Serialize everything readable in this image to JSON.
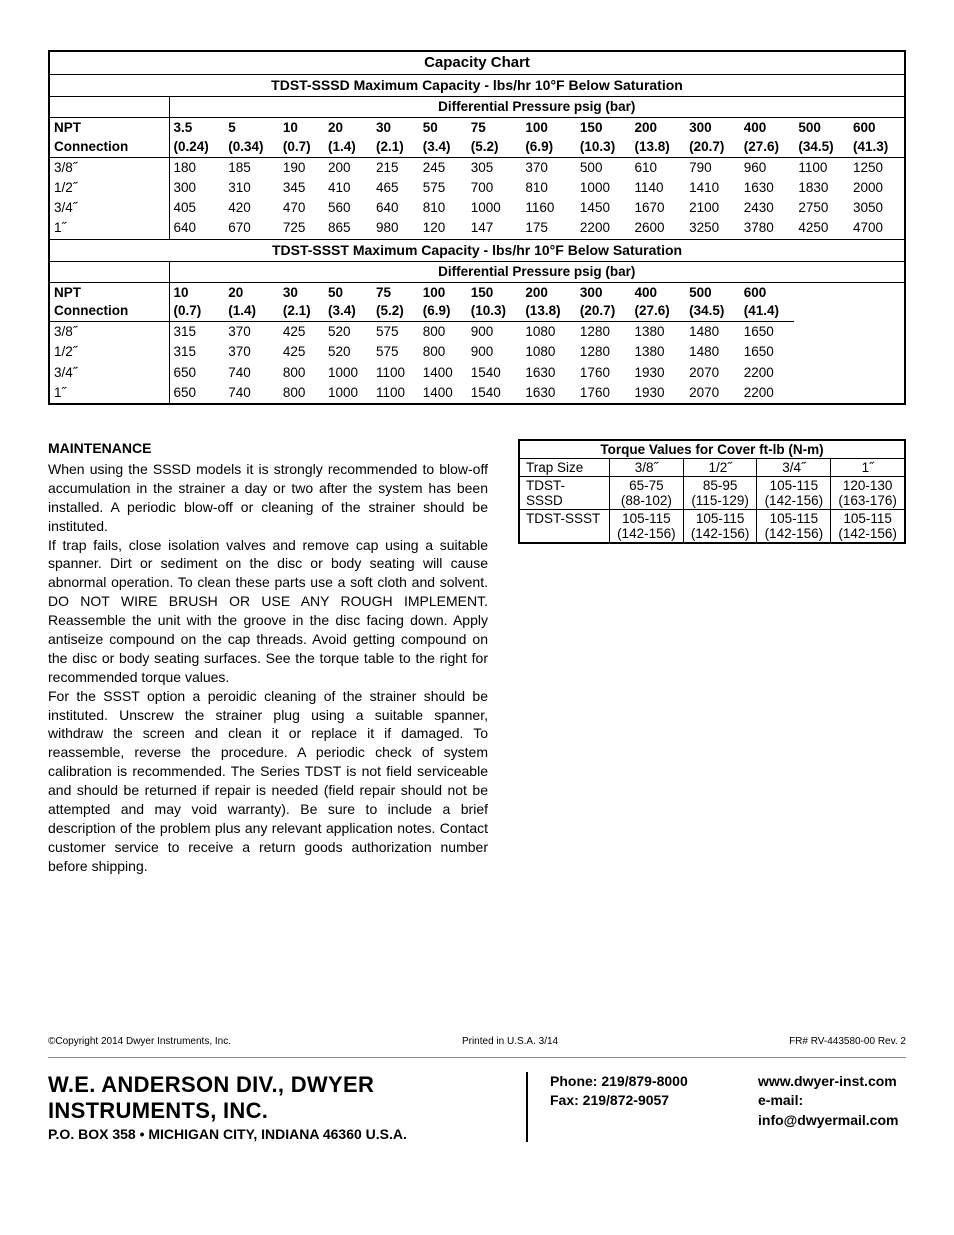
{
  "capacity": {
    "title": "Capacity Chart",
    "sssd": {
      "subtitle": "TDST-SSSD Maximum Capacity - lbs/hr 10°F Below Saturation",
      "diff_label": "Differential Pressure psig (bar)",
      "left_header_top": "NPT",
      "left_header_bot": "Connection",
      "headers_top": [
        "3.5",
        "5",
        "10",
        "20",
        "30",
        "50",
        "75",
        "100",
        "150",
        "200",
        "300",
        "400",
        "500",
        "600"
      ],
      "headers_bot": [
        "(0.24)",
        "(0.34)",
        "(0.7)",
        "(1.4)",
        "(2.1)",
        "(3.4)",
        "(5.2)",
        "(6.9)",
        "(10.3)",
        "(13.8)",
        "(20.7)",
        "(27.6)",
        "(34.5)",
        "(41.3)"
      ],
      "rows": [
        {
          "label": "3/8˝",
          "vals": [
            "180",
            "185",
            "190",
            "200",
            "215",
            "245",
            "305",
            "370",
            "500",
            "610",
            "790",
            "960",
            "1100",
            "1250"
          ]
        },
        {
          "label": "1/2˝",
          "vals": [
            "300",
            "310",
            "345",
            "410",
            "465",
            "575",
            "700",
            "810",
            "1000",
            "1140",
            "1410",
            "1630",
            "1830",
            "2000"
          ]
        },
        {
          "label": "3/4˝",
          "vals": [
            "405",
            "420",
            "470",
            "560",
            "640",
            "810",
            "1000",
            "1160",
            "1450",
            "1670",
            "2100",
            "2430",
            "2750",
            "3050"
          ]
        },
        {
          "label": "1˝",
          "vals": [
            "640",
            "670",
            "725",
            "865",
            "980",
            "120",
            "147",
            "175",
            "2200",
            "2600",
            "3250",
            "3780",
            "4250",
            "4700"
          ]
        }
      ]
    },
    "ssst": {
      "subtitle": "TDST-SSST Maximum Capacity - lbs/hr 10°F Below Saturation",
      "diff_label": "Differential Pressure psig (bar)",
      "left_header_top": "NPT",
      "left_header_bot": "Connection",
      "headers_top": [
        "10",
        "20",
        "30",
        "50",
        "75",
        "100",
        "150",
        "200",
        "300",
        "400",
        "500",
        "600"
      ],
      "headers_bot": [
        "(0.7)",
        "(1.4)",
        "(2.1)",
        "(3.4)",
        "(5.2)",
        "(6.9)",
        "(10.3)",
        "(13.8)",
        "(20.7)",
        "(27.6)",
        "(34.5)",
        "(41.4)"
      ],
      "rows": [
        {
          "label": "3/8˝",
          "vals": [
            "315",
            "370",
            "425",
            "520",
            "575",
            "800",
            "900",
            "1080",
            "1280",
            "1380",
            "1480",
            "1650"
          ]
        },
        {
          "label": "1/2˝",
          "vals": [
            "315",
            "370",
            "425",
            "520",
            "575",
            "800",
            "900",
            "1080",
            "1280",
            "1380",
            "1480",
            "1650"
          ]
        },
        {
          "label": "3/4˝",
          "vals": [
            "650",
            "740",
            "800",
            "1000",
            "1100",
            "1400",
            "1540",
            "1630",
            "1760",
            "1930",
            "2070",
            "2200"
          ]
        },
        {
          "label": "1˝",
          "vals": [
            "650",
            "740",
            "800",
            "1000",
            "1100",
            "1400",
            "1540",
            "1630",
            "1760",
            "1930",
            "2070",
            "2200"
          ]
        }
      ]
    }
  },
  "maintenance": {
    "heading": "MAINTENANCE",
    "p1": "When using the SSSD models it is strongly recommended to blow-off accumulation in the strainer a day or two after the system has been installed. A periodic blow-off or cleaning of the strainer should be instituted.",
    "p2": "If trap fails, close isolation valves and remove cap using a suitable spanner. Dirt or sediment on the disc or body seating will cause abnormal operation. To clean these parts use a soft cloth and solvent. DO NOT WIRE BRUSH OR USE ANY ROUGH IMPLEMENT. Reassemble the unit with the groove in the disc facing down. Apply antiseize compound on the cap threads. Avoid getting compound on the disc or body seating surfaces. See the torque table to the right for recommended torque values.",
    "p3": "For the SSST option a peroidic cleaning of the strainer should be instituted. Unscrew the strainer plug using a suitable spanner, withdraw the screen and clean it or replace it if damaged. To reassemble, reverse the procedure. A periodic check of system calibration is recommended. The Series TDST is not field serviceable and should be returned if repair is needed (field repair should not be attempted and may void warranty). Be sure to include a brief description of the problem plus any relevant application notes. Contact customer service to receive a return goods authorization number before shipping."
  },
  "torque": {
    "title": "Torque Values for Cover ft-lb (N-m)",
    "header": [
      "Trap Size",
      "3/8˝",
      "1/2˝",
      "3/4˝",
      "1˝"
    ],
    "rows": [
      {
        "label": "TDST-SSSD",
        "c1a": "65-75",
        "c1b": "(88-102)",
        "c2a": "85-95",
        "c2b": "(115-129)",
        "c3a": "105-115",
        "c3b": "(142-156)",
        "c4a": "120-130",
        "c4b": "(163-176)"
      },
      {
        "label": "TDST-SSST",
        "c1a": "105-115",
        "c1b": "(142-156)",
        "c2a": "105-115",
        "c2b": "(142-156)",
        "c3a": "105-115",
        "c3b": "(142-156)",
        "c4a": "105-115",
        "c4b": "(142-156)"
      }
    ]
  },
  "fine": {
    "copyright": "©Copyright 2014 Dwyer Instruments, Inc.",
    "printed": "Printed in U.S.A. 3/14",
    "rev": "FR# RV-443580-00 Rev. 2"
  },
  "footer": {
    "company": "W.E. ANDERSON DIV., DWYER INSTRUMENTS, INC.",
    "addr": "P.O. BOX 358 • MICHIGAN CITY, INDIANA 46360 U.S.A.",
    "phone": "Phone: 219/879-8000",
    "fax": "Fax: 219/872-9057",
    "web": "www.dwyer-inst.com",
    "email": "e-mail: info@dwyermail.com"
  }
}
